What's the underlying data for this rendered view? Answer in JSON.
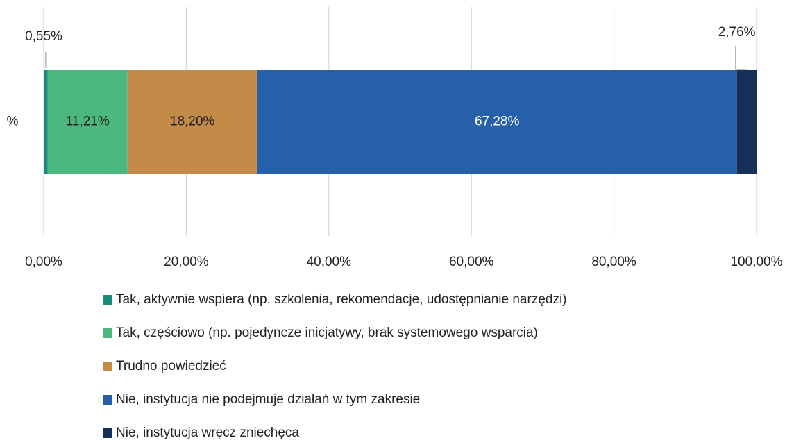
{
  "chart_data": {
    "type": "stacked_bar_horizontal",
    "categories": [
      "%"
    ],
    "series": [
      {
        "name": "Tak, aktywnie wspiera (np. szkolenia, rekomendacje, udostępnianie narzędzi)",
        "color": "#1a8a7a",
        "values": [
          0.55
        ],
        "value_labels": [
          "0,55%"
        ]
      },
      {
        "name": "Tak, częściowo (np. pojedyncze inicjatywy, brak systemowego wsparcia)",
        "color": "#4cb87e",
        "values": [
          11.21
        ],
        "value_labels": [
          "11,21%"
        ]
      },
      {
        "name": "Trudno powiedzieć",
        "color": "#c48a47",
        "values": [
          18.2
        ],
        "value_labels": [
          "18,20%"
        ]
      },
      {
        "name": "Nie, instytucja nie podejmuje działań w tym zakresie",
        "color": "#2660ab",
        "values": [
          67.28
        ],
        "value_labels": [
          "67,28%"
        ]
      },
      {
        "name": "Nie, instytucja wręcz zniechęca",
        "color": "#17305a",
        "values": [
          2.76
        ],
        "value_labels": [
          "2,76%"
        ]
      }
    ],
    "xlim": [
      0,
      100
    ],
    "xticks": [
      {
        "value": 0,
        "label": "0,00%"
      },
      {
        "value": 20,
        "label": "20,00%"
      },
      {
        "value": 40,
        "label": "40,00%"
      },
      {
        "value": 60,
        "label": "60,00%"
      },
      {
        "value": 80,
        "label": "80,00%"
      },
      {
        "value": 100,
        "label": "100,00%"
      }
    ],
    "grid": true,
    "legend": "bottom"
  }
}
